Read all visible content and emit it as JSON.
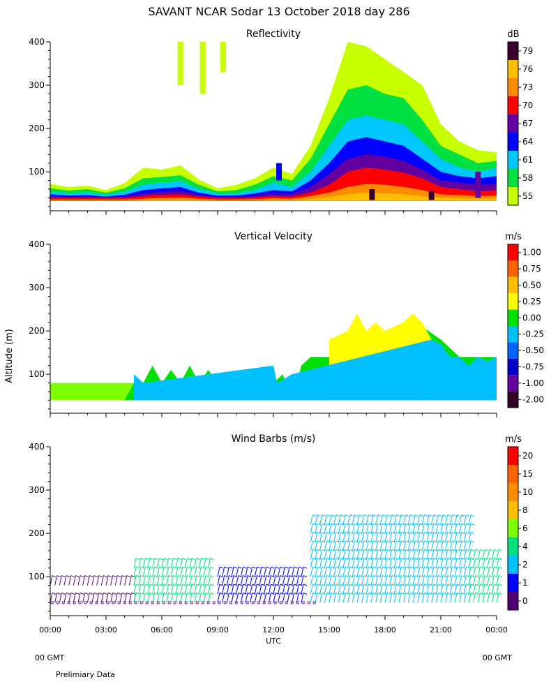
{
  "chart_data": {
    "type": "heatmap",
    "title": "SAVANT  NCAR Sodar  13 October 2018  day 286",
    "ylabel": "Altitude (m)",
    "xlabel": "UTC",
    "x_ticks": [
      "00:00",
      "03:00",
      "06:00",
      "09:00",
      "12:00",
      "15:00",
      "18:00",
      "21:00",
      "00:00"
    ],
    "x_range_hours": [
      0,
      24
    ],
    "gmt_left": "00 GMT",
    "gmt_right": "00 GMT",
    "footer": "Prelimiary Data",
    "panels": [
      {
        "title": "Reflectivity",
        "unit": "dB",
        "ylim": [
          10,
          400
        ],
        "y_ticks": [
          100,
          200,
          300,
          400
        ],
        "legend_labels": [
          "79",
          "76",
          "73",
          "70",
          "67",
          "64",
          "61",
          "58",
          "55"
        ],
        "legend_colors": [
          "#3a0030",
          "#ffbe00",
          "#ff8c00",
          "#ff0000",
          "#6400a0",
          "#0000ff",
          "#00c8ff",
          "#00e040",
          "#c8ff00"
        ],
        "series": [
          {
            "name": "55",
            "color": "#c8ff00",
            "x": [
              0,
              1,
              2,
              3,
              4,
              5,
              6,
              7,
              8,
              9,
              10,
              11,
              12,
              13,
              14,
              15,
              16,
              17,
              18,
              19,
              20,
              21,
              22,
              23,
              24
            ],
            "top": [
              72,
              65,
              68,
              58,
              74,
              110,
              105,
              115,
              82,
              62,
              70,
              85,
              110,
              95,
              160,
              270,
              400,
              390,
              360,
              330,
              300,
              210,
              170,
              150,
              145
            ]
          },
          {
            "name": "58",
            "color": "#00e040",
            "x": [
              0,
              1,
              2,
              3,
              4,
              5,
              6,
              7,
              8,
              9,
              10,
              11,
              12,
              13,
              14,
              15,
              16,
              17,
              18,
              19,
              20,
              21,
              22,
              23,
              24
            ],
            "top": [
              62,
              57,
              60,
              52,
              62,
              85,
              88,
              92,
              70,
              55,
              58,
              70,
              90,
              80,
              130,
              210,
              290,
              300,
              280,
              270,
              220,
              160,
              140,
              120,
              125
            ]
          },
          {
            "name": "61",
            "color": "#00c8ff",
            "x": [
              0,
              1,
              2,
              3,
              4,
              5,
              6,
              7,
              8,
              9,
              10,
              11,
              12,
              13,
              14,
              15,
              16,
              17,
              18,
              19,
              20,
              21,
              22,
              23,
              24
            ],
            "top": [
              54,
              50,
              52,
              47,
              54,
              70,
              75,
              78,
              60,
              50,
              50,
              58,
              75,
              65,
              100,
              160,
              220,
              230,
              220,
              210,
              170,
              130,
              110,
              100,
              110
            ]
          },
          {
            "name": "64",
            "color": "#0000ff",
            "x": [
              0,
              1,
              2,
              3,
              4,
              5,
              6,
              7,
              8,
              9,
              10,
              11,
              12,
              13,
              14,
              15,
              16,
              17,
              18,
              19,
              20,
              21,
              22,
              23,
              24
            ],
            "top": [
              48,
              45,
              46,
              43,
              47,
              58,
              62,
              65,
              52,
              45,
              45,
              50,
              58,
              55,
              80,
              120,
              170,
              180,
              170,
              160,
              130,
              100,
              90,
              85,
              90
            ]
          },
          {
            "name": "67",
            "color": "#6400a0",
            "x": [
              0,
              1,
              2,
              3,
              4,
              5,
              6,
              7,
              8,
              9,
              10,
              11,
              12,
              13,
              14,
              15,
              16,
              17,
              18,
              19,
              20,
              21,
              22,
              23,
              24
            ],
            "top": [
              44,
              42,
              43,
              41,
              43,
              50,
              54,
              56,
              47,
              42,
              42,
              45,
              50,
              48,
              65,
              95,
              130,
              140,
              135,
              125,
              105,
              80,
              75,
              70,
              72
            ]
          },
          {
            "name": "70",
            "color": "#ff0000",
            "x": [
              0,
              1,
              2,
              3,
              4,
              5,
              6,
              7,
              8,
              9,
              10,
              11,
              12,
              13,
              14,
              15,
              16,
              17,
              18,
              19,
              20,
              21,
              22,
              23,
              24
            ],
            "top": [
              40,
              40,
              40,
              40,
              40,
              44,
              47,
              48,
              43,
              40,
              40,
              41,
              44,
              43,
              52,
              70,
              100,
              110,
              105,
              98,
              85,
              65,
              60,
              55,
              58
            ]
          },
          {
            "name": "73",
            "color": "#ff8c00",
            "x": [
              0,
              1,
              2,
              3,
              4,
              5,
              6,
              7,
              8,
              9,
              10,
              11,
              12,
              13,
              14,
              15,
              16,
              17,
              18,
              19,
              20,
              21,
              22,
              23,
              24
            ],
            "top": [
              36,
              36,
              36,
              36,
              36,
              38,
              40,
              41,
              38,
              36,
              36,
              37,
              39,
              38,
              44,
              52,
              65,
              72,
              70,
              65,
              58,
              48,
              46,
              44,
              45
            ]
          },
          {
            "name": "76",
            "color": "#ffbe00",
            "x": [
              0,
              1,
              2,
              3,
              4,
              5,
              6,
              7,
              8,
              9,
              10,
              11,
              12,
              13,
              14,
              15,
              16,
              17,
              18,
              19,
              20,
              21,
              22,
              23,
              24
            ],
            "top": [
              33,
              33,
              33,
              33,
              33,
              34,
              35,
              35,
              34,
              33,
              33,
              33,
              34,
              34,
              37,
              42,
              48,
              52,
              50,
              48,
              44,
              40,
              39,
              38,
              38
            ]
          }
        ],
        "outlier_cells": [
          {
            "x": 7.0,
            "top": 400,
            "bottom": 300,
            "color": "#c8ff00"
          },
          {
            "x": 8.2,
            "top": 400,
            "bottom": 280,
            "color": "#c8ff00"
          },
          {
            "x": 9.3,
            "top": 400,
            "bottom": 330,
            "color": "#c8ff00"
          },
          {
            "x": 12.3,
            "top": 120,
            "bottom": 80,
            "color": "#0000ff"
          },
          {
            "x": 23.0,
            "top": 100,
            "bottom": 40,
            "color": "#6400a0"
          },
          {
            "x": 17.3,
            "top": 60,
            "bottom": 35,
            "color": "#3a0030"
          },
          {
            "x": 20.5,
            "top": 55,
            "bottom": 35,
            "color": "#3a0030"
          }
        ]
      },
      {
        "title": "Vertical Velocity",
        "unit": "m/s",
        "ylim": [
          10,
          400
        ],
        "y_ticks": [
          100,
          200,
          300,
          400
        ],
        "legend_labels": [
          "1.00",
          "0.75",
          "0.50",
          "0.25",
          "0.00",
          "-0.25",
          "-0.50",
          "-0.75",
          "-1.00",
          "-2.00"
        ],
        "legend_colors": [
          "#ff0000",
          "#ff6400",
          "#ffbe00",
          "#ffff00",
          "#00e000",
          "#00c0ff",
          "#0064ff",
          "#0000c8",
          "#6400a0",
          "#320028"
        ],
        "base_fill": {
          "color": "#80ff00",
          "bottom": 40,
          "top": 80,
          "x": [
            0,
            12
          ]
        },
        "series": [
          {
            "name": "0.00",
            "color": "#00e000",
            "x": [
              0,
              2,
              4,
              4.5,
              5,
              5.5,
              6,
              6.5,
              7,
              7.5,
              8,
              8.5,
              9,
              10,
              11,
              12,
              12.5,
              13,
              13.5,
              14,
              15,
              16,
              17,
              18,
              19,
              20,
              21,
              22,
              23,
              24
            ],
            "top": [
              40,
              40,
              40,
              80,
              80,
              120,
              80,
              110,
              80,
              120,
              80,
              110,
              80,
              80,
              80,
              80,
              100,
              40,
              120,
              140,
              140,
              160,
              180,
              200,
              200,
              210,
              180,
              140,
              140,
              140
            ]
          },
          {
            "name": "0.25",
            "color": "#ffff00",
            "x": [
              15,
              15.5,
              16,
              16.5,
              17,
              17.5,
              18,
              18.5,
              19,
              19.5,
              20,
              20.5
            ],
            "top": [
              180,
              190,
              200,
              240,
              200,
              220,
              200,
              210,
              220,
              240,
              220,
              180
            ]
          },
          {
            "name": "-0.25",
            "color": "#00c0ff",
            "x": [
              4.5,
              5,
              12,
              12.2,
              13,
              20.5,
              21,
              21.5,
              22,
              22.5,
              23,
              23.5,
              24
            ],
            "top": [
              100,
              80,
              120,
              80,
              100,
              180,
              170,
              140,
              140,
              120,
              140,
              130,
              140
            ]
          }
        ]
      },
      {
        "title": "Wind Barbs (m/s)",
        "unit": "m/s",
        "ylim": [
          10,
          400
        ],
        "y_ticks": [
          100,
          200,
          300,
          400
        ],
        "legend_labels": [
          "20",
          "15",
          "10",
          "8",
          "6",
          "4",
          "2",
          "1",
          "0"
        ],
        "legend_colors": [
          "#ff0000",
          "#ff6400",
          "#ff8c00",
          "#ffbe00",
          "#80ff00",
          "#00e080",
          "#00c0ff",
          "#0000ff",
          "#500070"
        ],
        "barb_columns": [
          {
            "x_range": [
              0,
              4.5
            ],
            "levels": [
              40,
              80
            ],
            "speed_class": "0"
          },
          {
            "x_range": [
              4.5,
              8.5
            ],
            "levels": [
              40,
              60,
              80,
              100,
              120
            ],
            "speed_class": "4"
          },
          {
            "x_range": [
              9,
              13.5
            ],
            "levels": [
              40,
              60,
              80,
              100
            ],
            "speed_class": "1"
          },
          {
            "x_range": [
              14,
              22.5
            ],
            "levels": [
              40,
              60,
              80,
              100,
              120,
              140,
              160,
              180,
              200,
              220
            ],
            "speed_class": "2"
          },
          {
            "x_range": [
              22.5,
              24
            ],
            "levels": [
              40,
              60,
              80,
              100,
              120,
              140
            ],
            "speed_class": "4"
          }
        ],
        "calm_markers": {
          "altitude": 40,
          "x_range": [
            0,
            14.3
          ]
        }
      }
    ]
  }
}
